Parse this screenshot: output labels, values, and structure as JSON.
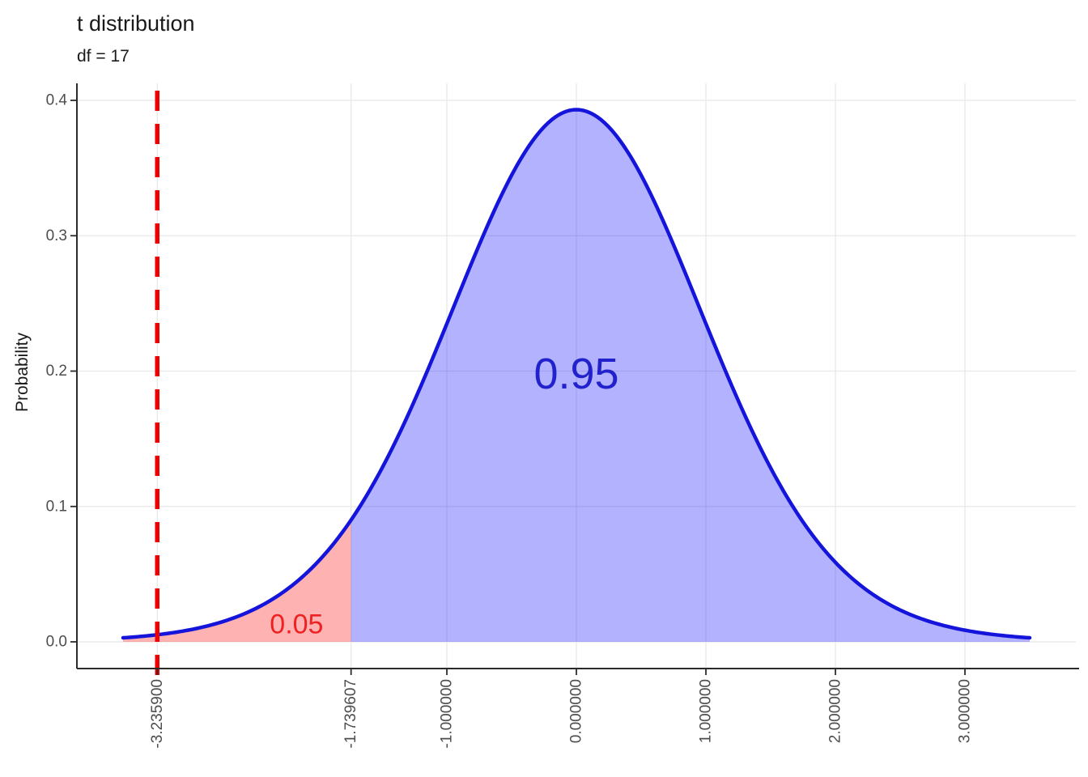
{
  "chart_data": {
    "type": "area",
    "title": "t distribution",
    "subtitle": "df = 17",
    "xlabel": "",
    "ylabel": "Probability",
    "distribution": "t",
    "df": 17,
    "x_domain": [
      -3.5,
      3.5
    ],
    "ylim": [
      0,
      0.4
    ],
    "grid": true,
    "legend": false,
    "x_ticks": [
      {
        "value": -3.2359,
        "label": "-3.235900"
      },
      {
        "value": -1.739607,
        "label": "-1.739607"
      },
      {
        "value": -1,
        "label": "-1.000000"
      },
      {
        "value": 0,
        "label": "0.000000"
      },
      {
        "value": 1,
        "label": "1.000000"
      },
      {
        "value": 2,
        "label": "2.000000"
      },
      {
        "value": 3,
        "label": "3.000000"
      }
    ],
    "y_ticks": [
      {
        "value": 0.0,
        "label": "0.0"
      },
      {
        "value": 0.1,
        "label": "0.1"
      },
      {
        "value": 0.2,
        "label": "0.2"
      },
      {
        "value": 0.3,
        "label": "0.3"
      },
      {
        "value": 0.4,
        "label": "0.4"
      }
    ],
    "critical_value": -1.739607,
    "marker_line": {
      "x": -3.2359,
      "style": "dashed",
      "color": "#EE0000",
      "width": 5.5
    },
    "regions": [
      {
        "name": "lower-tail",
        "from": -3.5,
        "to": -1.739607,
        "area_label": "0.05",
        "fill": "rgba(255,0,0,0.30)",
        "label_color": "#EE2222",
        "label_x": -2.16,
        "label_y": 0.013,
        "label_size": 34
      },
      {
        "name": "body",
        "from": -1.739607,
        "to": 3.5,
        "area_label": "0.95",
        "fill": "rgba(0,0,255,0.30)",
        "label_color": "#2222CC",
        "label_x": 0,
        "label_y": 0.198,
        "label_size": 54
      }
    ],
    "curve_color": "#1414DB",
    "curve_width": 4.5,
    "axis_color": "#2b2b2b",
    "grid_color": "#E8E8E8",
    "tick_label_color": "#4D4D4D",
    "text_color": "#1A1A1A"
  }
}
